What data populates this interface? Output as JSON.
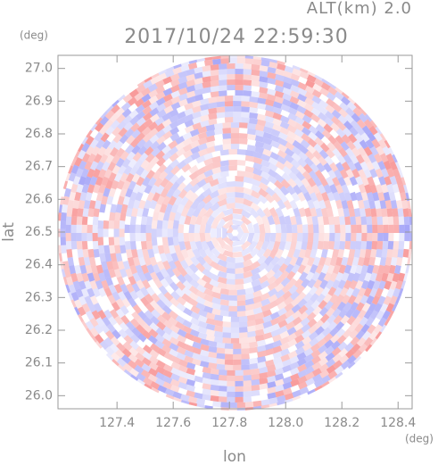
{
  "chart_data": {
    "type": "radar",
    "title": "2017/10/24 22:59:30",
    "altitude_label": "ALT(km) 2.0",
    "x_label": "lon",
    "x_unit": "(deg)",
    "y_label": "lat",
    "y_unit": "(deg)",
    "xlim": [
      127.19,
      128.45
    ],
    "xticks": [
      127.4,
      127.6,
      127.8,
      {
        "value": 128.0,
        "label": "128.0"
      },
      128.2,
      128.4
    ],
    "ylim": [
      25.96,
      27.04
    ],
    "yticks": [
      {
        "value": 26.0,
        "label": "26.0"
      },
      26.1,
      26.2,
      26.3,
      26.4,
      26.5,
      26.6,
      26.7,
      26.8,
      26.9,
      {
        "value": 27.0,
        "label": "27.0"
      }
    ]
  }
}
